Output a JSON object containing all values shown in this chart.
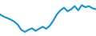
{
  "x": [
    0,
    1,
    2,
    3,
    4,
    5,
    6,
    7,
    8,
    9,
    10,
    11,
    12,
    13,
    14,
    15,
    16,
    17,
    18,
    19,
    20,
    21,
    22,
    23,
    24,
    25,
    26,
    27
  ],
  "y": [
    72,
    68,
    65,
    62,
    58,
    52,
    42,
    38,
    42,
    45,
    40,
    44,
    48,
    44,
    50,
    60,
    72,
    80,
    85,
    78,
    82,
    88,
    80,
    90,
    86,
    88,
    84,
    82
  ],
  "line_color": "#2196c8",
  "linewidth": 1.6,
  "background_color": "#ffffff",
  "ylim": [
    30,
    100
  ],
  "xlim": [
    0,
    27
  ]
}
